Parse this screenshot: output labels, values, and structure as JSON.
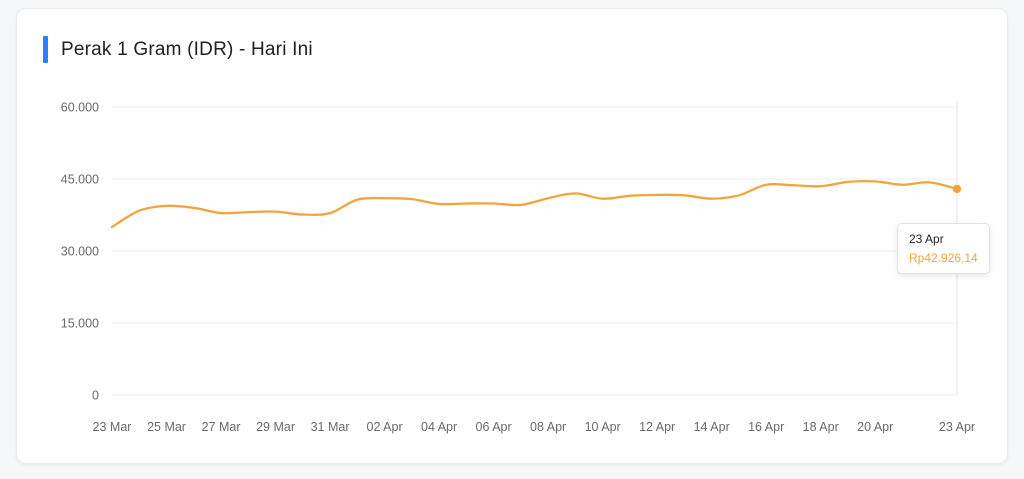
{
  "card": {
    "title": "Perak 1 Gram (IDR) - Hari Ini",
    "accent_color": "#2d7ff9"
  },
  "chart_data": {
    "type": "line",
    "title": "Perak 1 Gram (IDR) - Hari Ini",
    "x": [
      "23 Mar",
      "24 Mar",
      "25 Mar",
      "26 Mar",
      "27 Mar",
      "28 Mar",
      "29 Mar",
      "30 Mar",
      "31 Mar",
      "01 Apr",
      "02 Apr",
      "03 Apr",
      "04 Apr",
      "05 Apr",
      "06 Apr",
      "07 Apr",
      "08 Apr",
      "09 Apr",
      "10 Apr",
      "11 Apr",
      "12 Apr",
      "13 Apr",
      "14 Apr",
      "15 Apr",
      "16 Apr",
      "17 Apr",
      "18 Apr",
      "19 Apr",
      "20 Apr",
      "21 Apr",
      "22 Apr",
      "23 Apr"
    ],
    "values": [
      35000,
      38400,
      39400,
      39000,
      37900,
      38100,
      38200,
      37600,
      37900,
      40700,
      41000,
      40800,
      39800,
      39900,
      39900,
      39600,
      41000,
      42000,
      40900,
      41500,
      41700,
      41600,
      40900,
      41600,
      43800,
      43700,
      43500,
      44400,
      44500,
      43800,
      44300,
      42926.14
    ],
    "ylim": [
      0,
      60000
    ],
    "yticks": [
      0,
      15000,
      30000,
      45000,
      60000
    ],
    "ytick_labels": [
      "0",
      "15.000",
      "30.000",
      "45.000",
      "60.000"
    ],
    "xtick_labels": [
      "23 Mar",
      "25 Mar",
      "27 Mar",
      "29 Mar",
      "31 Mar",
      "02 Apr",
      "04 Apr",
      "06 Apr",
      "08 Apr",
      "10 Apr",
      "12 Apr",
      "14 Apr",
      "16 Apr",
      "18 Apr",
      "20 Apr",
      "23 Apr"
    ],
    "line_color": "#f2a43e",
    "dot_color": "#f2a43e",
    "grid_color": "#ececec",
    "crosshair_color": "#e3e3e3",
    "grid": true,
    "legend": "none",
    "tooltip": {
      "date": "23 Apr",
      "value_label": "Rp42.926,14"
    }
  }
}
